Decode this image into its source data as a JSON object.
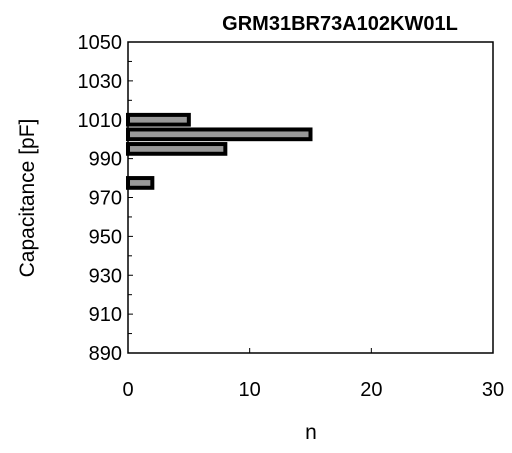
{
  "chart_data": {
    "type": "bar",
    "orientation": "horizontal",
    "title": "GRM31BR73A102KW01L",
    "xlabel": "n",
    "ylabel": "Capacitance [pF]",
    "xlim": [
      0,
      30
    ],
    "ylim": [
      890,
      1050
    ],
    "x_ticks": [
      "0",
      "10",
      "20",
      "30"
    ],
    "y_ticks": [
      "1050",
      "1030",
      "1010",
      "990",
      "970",
      "950",
      "930",
      "910",
      "890"
    ],
    "bin_width": 5,
    "bins": [
      {
        "center": 1010,
        "count": 5
      },
      {
        "center": 1002.5,
        "count": 15
      },
      {
        "center": 995,
        "count": 8
      },
      {
        "center": 977.5,
        "count": 2
      }
    ],
    "grid": false,
    "bar_color": "#999999",
    "bar_edge_color": "#000000"
  }
}
